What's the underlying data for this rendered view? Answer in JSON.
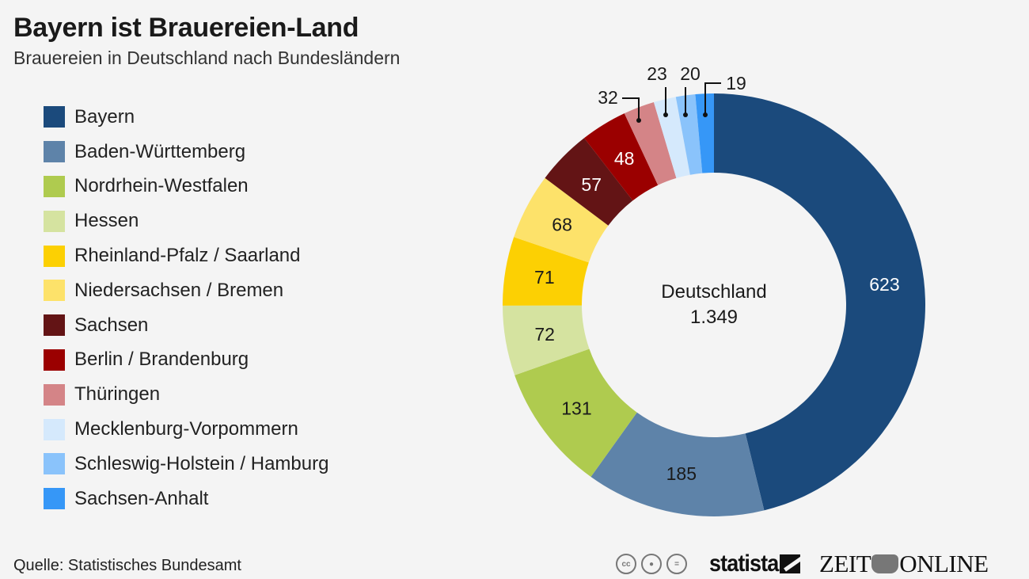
{
  "header": {
    "title": "Bayern ist Brauereien-Land",
    "subtitle": "Brauereien in Deutschland nach Bundesländern"
  },
  "footer": {
    "source": "Quelle: Statistisches Bundesamt",
    "license_icons": [
      "cc-icon",
      "by-icon",
      "nd-icon"
    ],
    "brand_statista": "statista",
    "brand_zeit_left": "ZEIT",
    "brand_zeit_right": "ONLINE"
  },
  "chart_data": {
    "type": "pie",
    "variant": "donut",
    "title": "Bayern ist Brauereien-Land",
    "subtitle": "Brauereien in Deutschland nach Bundesländern",
    "center_label": "Deutschland",
    "center_value": "1.349",
    "total": 1349,
    "start": "12 o'clock, clockwise",
    "legend_position": "left",
    "categories": [
      "Bayern",
      "Baden-Württemberg",
      "Nordrhein-Westfalen",
      "Hessen",
      "Rheinland-Pfalz / Saarland",
      "Niedersachsen / Bremen",
      "Sachsen",
      "Berlin / Brandenburg",
      "Thüringen",
      "Mecklenburg-Vorpommern",
      "Schleswig-Holstein / Hamburg",
      "Sachsen-Anhalt"
    ],
    "values": [
      623,
      185,
      131,
      72,
      71,
      68,
      57,
      48,
      32,
      23,
      20,
      19
    ],
    "colors": [
      "#1b4a7c",
      "#5e83a9",
      "#afcb4f",
      "#d5e3a0",
      "#fcd003",
      "#fde26a",
      "#631415",
      "#9b0000",
      "#d48487",
      "#d5e9fc",
      "#8ac3fb",
      "#3697f7"
    ],
    "label_colors": [
      "#ffffff",
      "#1a1a1a",
      "#1a1a1a",
      "#1a1a1a",
      "#1a1a1a",
      "#1a1a1a",
      "#ffffff",
      "#ffffff",
      "#1a1a1a",
      "#1a1a1a",
      "#1a1a1a",
      "#1a1a1a"
    ],
    "outside_labels": [
      false,
      false,
      false,
      false,
      false,
      false,
      false,
      false,
      true,
      true,
      true,
      true
    ]
  }
}
